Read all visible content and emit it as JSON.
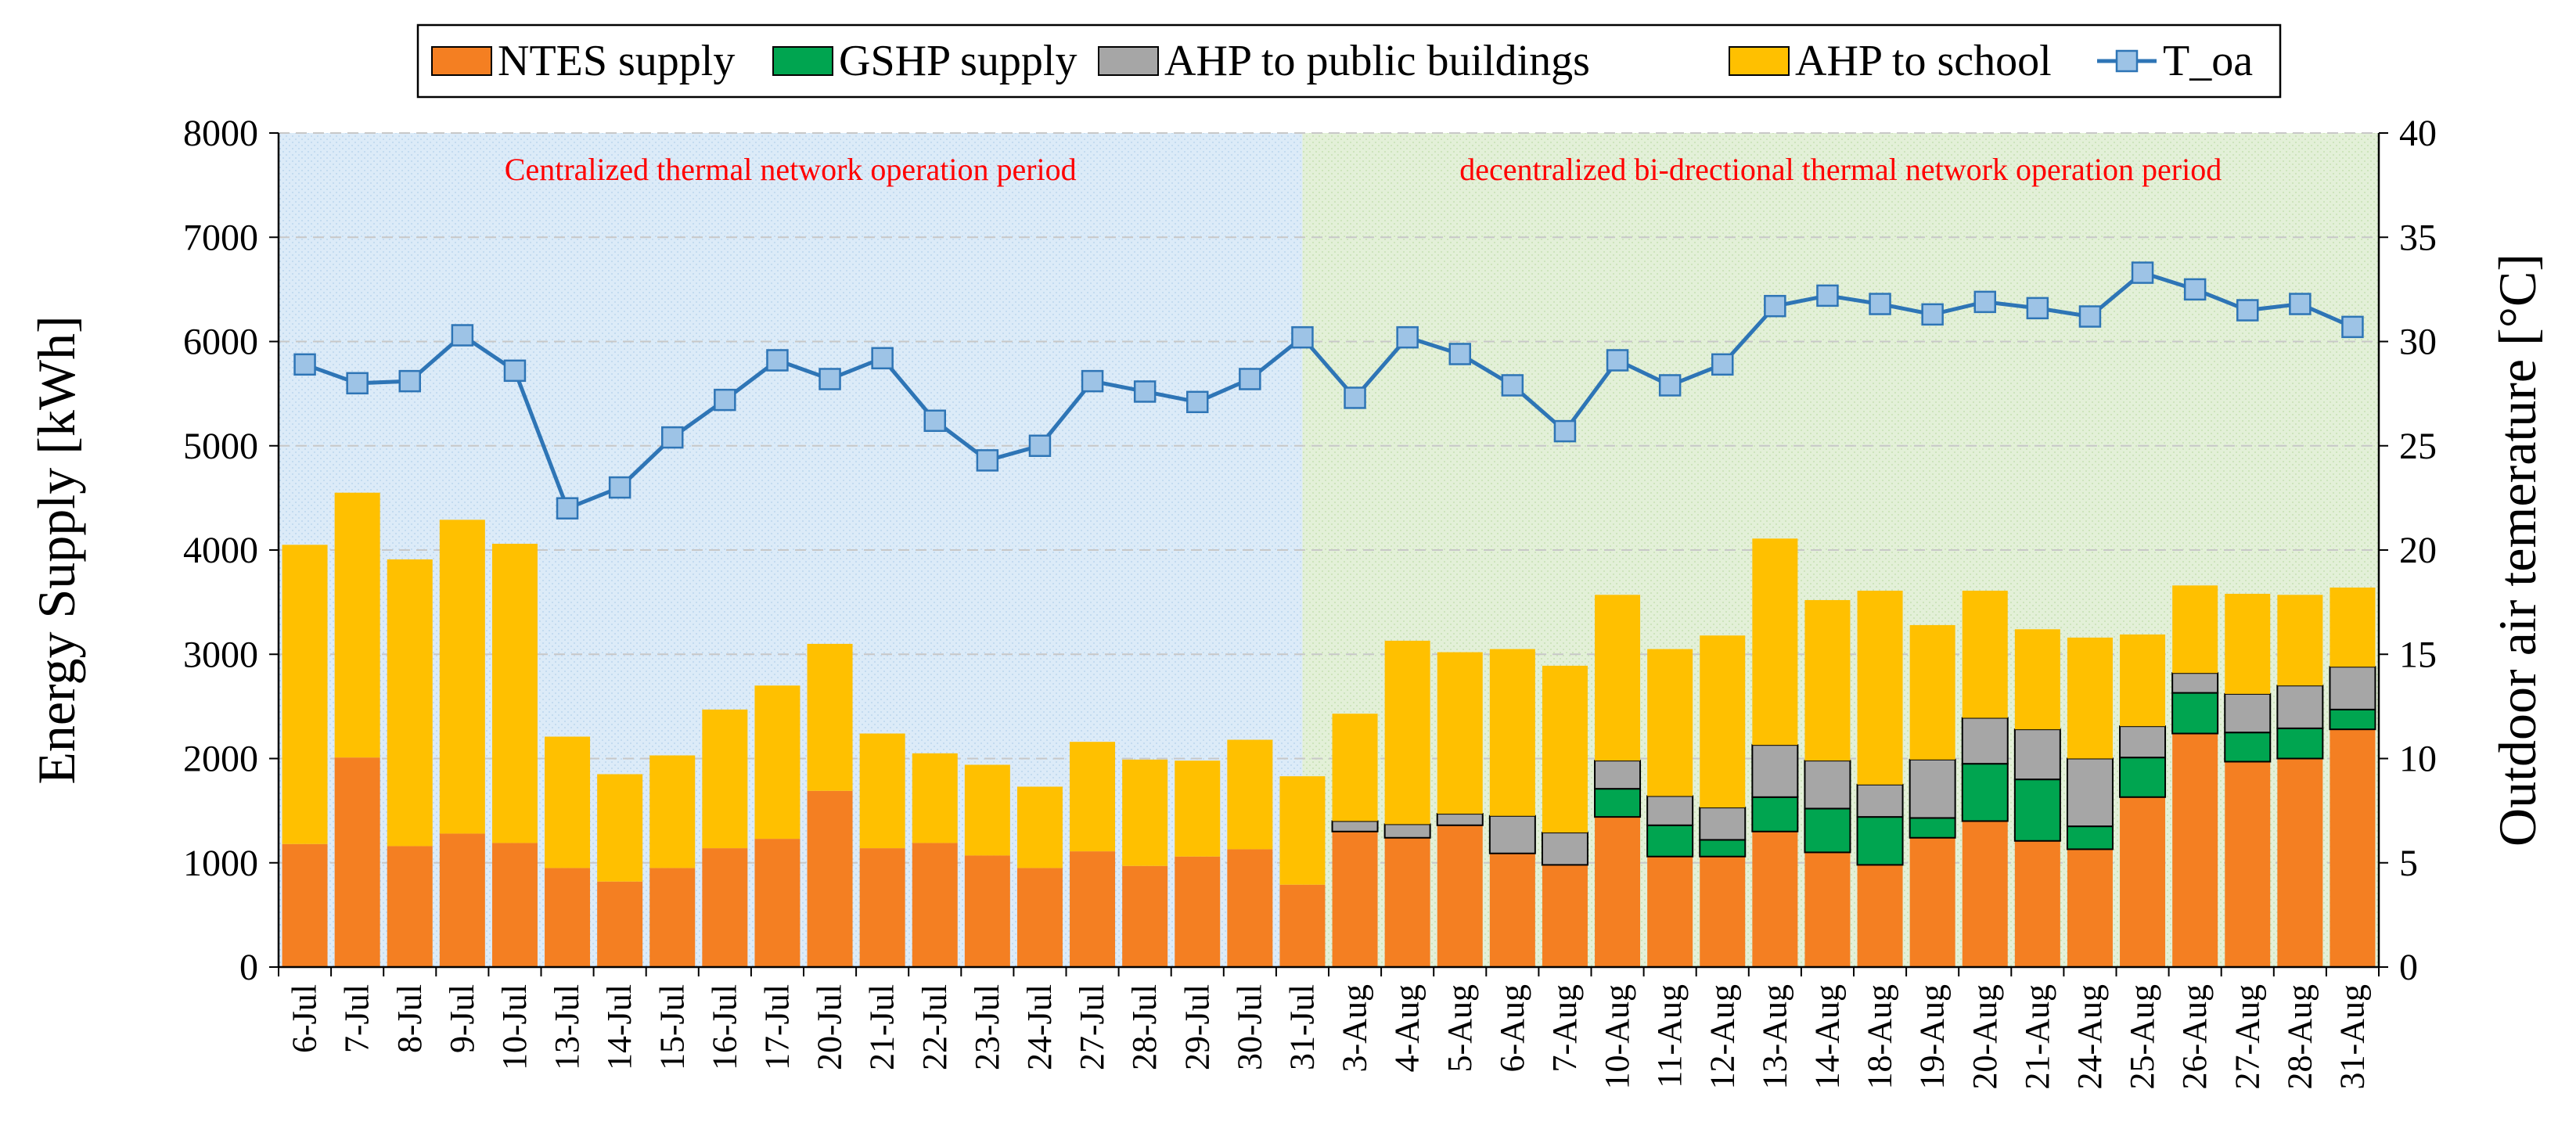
{
  "chart_data": {
    "type": "bar",
    "stacked": true,
    "categories": [
      "6-Jul",
      "7-Jul",
      "8-Jul",
      "9-Jul",
      "10-Jul",
      "13-Jul",
      "14-Jul",
      "15-Jul",
      "16-Jul",
      "17-Jul",
      "20-Jul",
      "21-Jul",
      "22-Jul",
      "23-Jul",
      "24-Jul",
      "27-Jul",
      "28-Jul",
      "29-Jul",
      "30-Jul",
      "31-Jul",
      "3-Aug",
      "4-Aug",
      "5-Aug",
      "6-Aug",
      "7-Aug",
      "10-Aug",
      "11-Aug",
      "12-Aug",
      "13-Aug",
      "14-Aug",
      "18-Aug",
      "19-Aug",
      "20-Aug",
      "21-Aug",
      "24-Aug",
      "25-Aug",
      "26-Aug",
      "27-Aug",
      "28-Aug",
      "31-Aug"
    ],
    "series": [
      {
        "name": "NTES supply",
        "axis": "left",
        "type": "bar",
        "color": "#F47F22",
        "values": [
          1180,
          2010,
          1160,
          1280,
          1190,
          950,
          820,
          950,
          1140,
          1230,
          1690,
          1140,
          1190,
          1070,
          950,
          1110,
          970,
          1060,
          1130,
          790,
          1300,
          1240,
          1360,
          1090,
          980,
          1440,
          1060,
          1060,
          1300,
          1100,
          980,
          1240,
          1400,
          1210,
          1130,
          1630,
          2240,
          1970,
          2000,
          2280
        ]
      },
      {
        "name": "GSHP supply",
        "axis": "left",
        "type": "bar",
        "color": "#00A550",
        "values": [
          0,
          0,
          0,
          0,
          0,
          0,
          0,
          0,
          0,
          0,
          0,
          0,
          0,
          0,
          0,
          0,
          0,
          0,
          0,
          0,
          0,
          0,
          0,
          0,
          0,
          270,
          300,
          160,
          330,
          420,
          460,
          190,
          550,
          590,
          220,
          380,
          390,
          280,
          290,
          190
        ]
      },
      {
        "name": "AHP to public buildings",
        "axis": "left",
        "type": "bar",
        "color": "#A6A6A6",
        "values": [
          0,
          0,
          0,
          0,
          0,
          0,
          0,
          0,
          0,
          0,
          0,
          0,
          0,
          0,
          0,
          0,
          0,
          0,
          0,
          0,
          100,
          130,
          110,
          360,
          310,
          270,
          280,
          310,
          500,
          460,
          310,
          560,
          440,
          480,
          650,
          300,
          190,
          370,
          410,
          410
        ]
      },
      {
        "name": "AHP to school",
        "axis": "left",
        "type": "bar",
        "color": "#FFC000",
        "values": [
          2870,
          2540,
          2750,
          3010,
          2870,
          1260,
          1030,
          1080,
          1330,
          1470,
          1410,
          1100,
          860,
          870,
          780,
          1050,
          1020,
          920,
          1050,
          1040,
          1030,
          1760,
          1550,
          1600,
          1600,
          1590,
          1410,
          1650,
          1980,
          1540,
          1860,
          1290,
          1220,
          960,
          1160,
          880,
          840,
          960,
          870,
          760
        ]
      },
      {
        "name": "T_oa",
        "axis": "right",
        "type": "line",
        "color": "#2E75B6",
        "values": [
          28.9,
          28.0,
          28.1,
          30.3,
          28.6,
          22.0,
          23.0,
          25.4,
          27.2,
          29.1,
          28.2,
          29.2,
          26.2,
          24.3,
          25.0,
          28.1,
          27.6,
          27.1,
          28.2,
          30.2,
          27.3,
          30.2,
          29.4,
          27.9,
          25.7,
          29.1,
          27.9,
          28.9,
          31.7,
          32.2,
          31.8,
          31.3,
          31.9,
          31.6,
          31.2,
          33.3,
          32.5,
          31.5,
          31.8,
          30.7
        ]
      }
    ],
    "ylabel": "Energy Supply [kWh]",
    "ylim": [
      0,
      8000
    ],
    "yticks": [
      0,
      1000,
      2000,
      3000,
      4000,
      5000,
      6000,
      7000,
      8000
    ],
    "y2label": "Outdoor air temerature [°C]",
    "y2lim": [
      0,
      40
    ],
    "y2ticks": [
      0,
      5,
      10,
      15,
      20,
      25,
      30,
      35,
      40
    ],
    "grid": "horizontal dashed",
    "legend": "top-center",
    "periods": [
      {
        "label": "Centralized thermal network operation period",
        "from": "6-Jul",
        "to": "31-Jul",
        "color": "#DCEAF7"
      },
      {
        "label": "decentralized bi-drectional thermal network operation period",
        "from": "31-Jul",
        "to": "31-Aug",
        "color": "#E2F0D9"
      }
    ]
  }
}
